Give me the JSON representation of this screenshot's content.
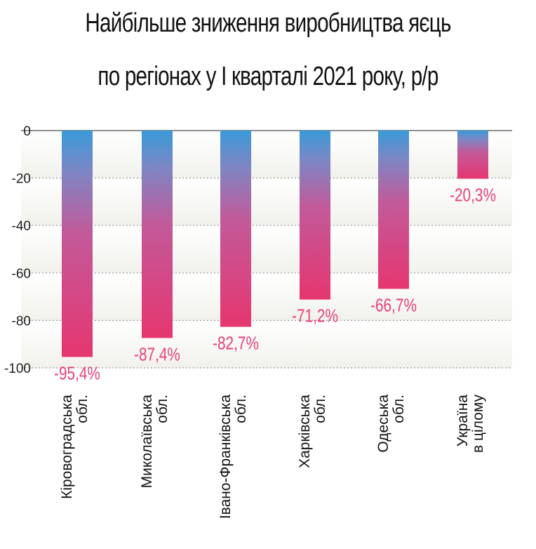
{
  "chart_data": {
    "type": "bar",
    "title_lines": [
      "Найбільше зниження виробництва яєць",
      "по регіонах у I кварталі 2021 року, р/р"
    ],
    "categories": [
      [
        "Кіровоградська",
        "обл."
      ],
      [
        "Миколаївська",
        "обл."
      ],
      [
        "Івано-Франківська",
        "обл."
      ],
      [
        "Харківська",
        "обл."
      ],
      [
        "Одеська",
        "обл."
      ],
      [
        "Україна",
        "в цілому"
      ]
    ],
    "values": [
      -95.4,
      -87.4,
      -82.7,
      -71.2,
      -66.7,
      -20.3
    ],
    "value_labels": [
      "-95,4%",
      "-87,4%",
      "-82,7%",
      "-71,2%",
      "-66,7%",
      "-20,3%"
    ],
    "yticks": [
      0,
      -20,
      -40,
      -60,
      -80,
      -100
    ],
    "ylim": [
      -100,
      0
    ],
    "grid": "dotted horizontal",
    "colors": {
      "bar_top": "#3a9ad9",
      "bar_mid": "#9a73b8",
      "bar_bottom": "#e6366f",
      "label": "#e8407a",
      "axis": "#555555"
    }
  }
}
